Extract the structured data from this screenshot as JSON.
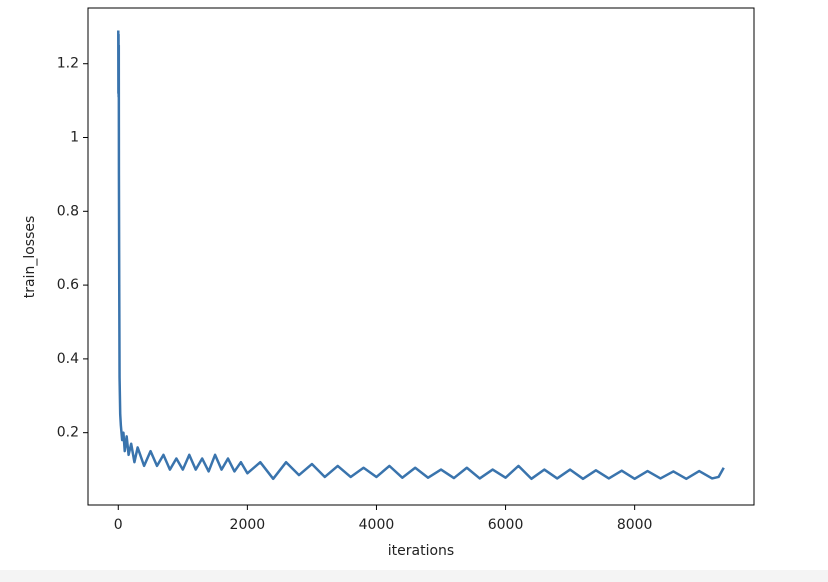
{
  "chart_data": {
    "type": "line",
    "xlabel": "iterations",
    "ylabel": "train_losses",
    "series": [
      {
        "name": "train_losses",
        "color": "#3a74ad",
        "x": [
          0,
          2,
          4,
          6,
          8,
          10,
          15,
          20,
          30,
          40,
          60,
          80,
          100,
          130,
          160,
          200,
          250,
          300,
          400,
          500,
          600,
          700,
          800,
          900,
          1000,
          1100,
          1200,
          1300,
          1400,
          1500,
          1600,
          1700,
          1800,
          1900,
          2000,
          2200,
          2400,
          2600,
          2800,
          3000,
          3200,
          3400,
          3600,
          3800,
          4000,
          4200,
          4400,
          4600,
          4800,
          5000,
          5200,
          5400,
          5600,
          5800,
          6000,
          6200,
          6400,
          6600,
          6800,
          7000,
          7200,
          7400,
          7600,
          7800,
          8000,
          8200,
          8400,
          8600,
          8800,
          9000,
          9200,
          9300,
          9380
        ],
        "values": [
          1.29,
          1.12,
          1.28,
          1.11,
          1.25,
          0.9,
          0.6,
          0.35,
          0.25,
          0.22,
          0.18,
          0.2,
          0.15,
          0.19,
          0.14,
          0.17,
          0.12,
          0.16,
          0.11,
          0.15,
          0.11,
          0.14,
          0.1,
          0.13,
          0.1,
          0.14,
          0.1,
          0.13,
          0.095,
          0.14,
          0.1,
          0.13,
          0.095,
          0.12,
          0.09,
          0.12,
          0.075,
          0.12,
          0.085,
          0.115,
          0.08,
          0.11,
          0.08,
          0.105,
          0.08,
          0.11,
          0.078,
          0.105,
          0.078,
          0.1,
          0.077,
          0.105,
          0.076,
          0.1,
          0.078,
          0.11,
          0.075,
          0.1,
          0.076,
          0.1,
          0.075,
          0.098,
          0.076,
          0.097,
          0.075,
          0.096,
          0.076,
          0.095,
          0.075,
          0.096,
          0.076,
          0.08,
          0.105
        ]
      }
    ],
    "xlim": [
      -469,
      9849
    ],
    "xticks": [
      0,
      2000,
      4000,
      6000,
      8000
    ],
    "ylim": [
      0.004,
      1.351
    ],
    "yticks": [
      0.2,
      0.4,
      0.6,
      0.8,
      1.0,
      1.2
    ]
  }
}
